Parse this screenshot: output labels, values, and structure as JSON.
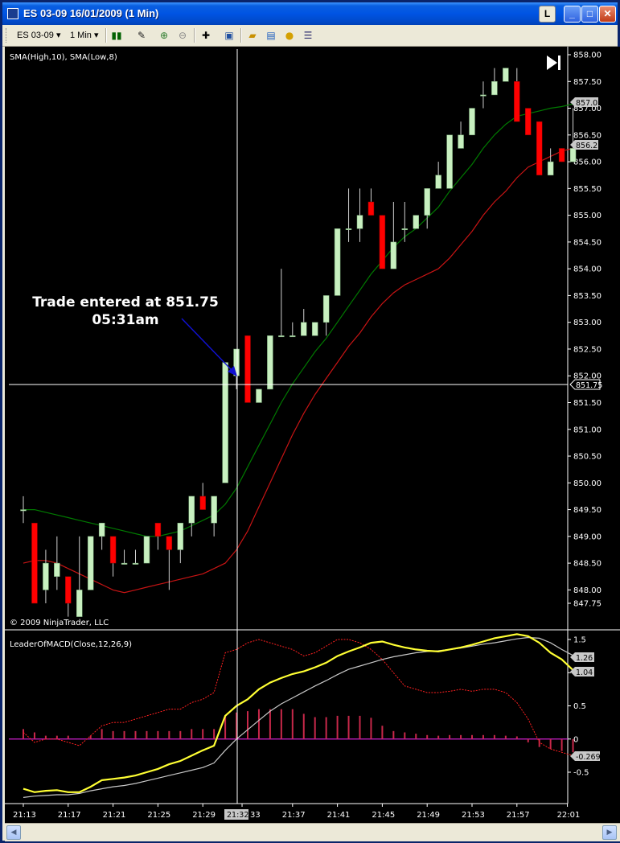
{
  "window": {
    "title": "ES 03-09  16/01/2009 (1 Min)",
    "buttons": {
      "l": "L",
      "minimize": "_",
      "maximize": "□",
      "close": "✕"
    }
  },
  "toolbar": {
    "instrument": "ES 03-09",
    "interval": "1 Min",
    "icons": [
      "candlestick-style-icon",
      "pencil-draw-icon",
      "zoom-in-icon",
      "zoom-out-icon",
      "crosshair-icon",
      "properties-icon",
      "open-folder-icon",
      "chart-template-icon",
      "coin-icon",
      "data-box-icon"
    ]
  },
  "chart": {
    "indicator_label": "SMA(High,10), SMA(Low,8)",
    "copyright": "© 2009 NinjaTrader, LLC",
    "annotation": {
      "line1": "Trade entered at 851.75",
      "line2": "05:31am"
    },
    "crosshair_price": "851.75",
    "crosshair_time": "21:32",
    "sma_high_label": "857.08",
    "sma_low_label": "856.25",
    "colors": {
      "up": "#c8f0c0",
      "down": "#ff0000",
      "sma_high": "#007a00",
      "sma_low": "#c81414",
      "macd": "#ffff33",
      "signal": "#c8c8c8",
      "avg": "#ff2020",
      "hist": "#c8284a",
      "zero": "#d020d0"
    }
  },
  "macd_panel": {
    "label": "LeaderOfMACD(Close,12,26,9)",
    "value_labels": [
      "1.26",
      "1.04",
      "-0.269"
    ]
  },
  "chart_data": [
    {
      "type": "candlestick",
      "title": "",
      "ylim": [
        847.4,
        858.1
      ],
      "y_ticks": [
        "858.00",
        "857.50",
        "857.00",
        "856.50",
        "856.00",
        "855.50",
        "855.00",
        "854.50",
        "854.00",
        "853.50",
        "853.00",
        "852.50",
        "852.00",
        "851.50",
        "851.00",
        "850.50",
        "850.00",
        "849.50",
        "849.00",
        "848.50",
        "848.00",
        "847.75"
      ],
      "x_ticks": [
        "21:13",
        "21:17",
        "21:21",
        "21:25",
        "21:29",
        "21:32",
        "21:37",
        "21:41",
        "21:45",
        "21:49",
        "21:53",
        "21:57",
        "22:01"
      ],
      "candles": [
        {
          "t": 0,
          "o": 849.5,
          "h": 849.75,
          "l": 849.25,
          "c": 849.5
        },
        {
          "t": 1,
          "o": 849.25,
          "h": 849.25,
          "l": 847.75,
          "c": 847.75
        },
        {
          "t": 2,
          "o": 848.0,
          "h": 848.75,
          "l": 847.75,
          "c": 848.5
        },
        {
          "t": 3,
          "o": 848.25,
          "h": 849.0,
          "l": 848.0,
          "c": 848.5
        },
        {
          "t": 4,
          "o": 848.25,
          "h": 848.25,
          "l": 847.5,
          "c": 847.75
        },
        {
          "t": 5,
          "o": 847.5,
          "h": 849.0,
          "l": 847.5,
          "c": 848.0
        },
        {
          "t": 6,
          "o": 848.0,
          "h": 849.0,
          "l": 848.0,
          "c": 849.0
        },
        {
          "t": 7,
          "o": 849.0,
          "h": 849.25,
          "l": 848.75,
          "c": 849.25
        },
        {
          "t": 8,
          "o": 849.0,
          "h": 849.0,
          "l": 848.25,
          "c": 848.5
        },
        {
          "t": 9,
          "o": 848.5,
          "h": 848.75,
          "l": 848.5,
          "c": 848.5
        },
        {
          "t": 10,
          "o": 848.5,
          "h": 848.75,
          "l": 848.5,
          "c": 848.5
        },
        {
          "t": 11,
          "o": 848.5,
          "h": 849.0,
          "l": 848.5,
          "c": 849.0
        },
        {
          "t": 12,
          "o": 849.25,
          "h": 849.25,
          "l": 848.75,
          "c": 849.0
        },
        {
          "t": 13,
          "o": 849.0,
          "h": 849.0,
          "l": 848.0,
          "c": 848.75
        },
        {
          "t": 14,
          "o": 848.75,
          "h": 849.25,
          "l": 848.5,
          "c": 849.25
        },
        {
          "t": 15,
          "o": 849.25,
          "h": 849.75,
          "l": 849.0,
          "c": 849.75
        },
        {
          "t": 16,
          "o": 849.75,
          "h": 850.0,
          "l": 849.5,
          "c": 849.5
        },
        {
          "t": 17,
          "o": 849.25,
          "h": 849.75,
          "l": 849.0,
          "c": 849.75
        },
        {
          "t": 18,
          "o": 850.0,
          "h": 852.25,
          "l": 850.0,
          "c": 852.25
        },
        {
          "t": 19,
          "o": 852.0,
          "h": 852.5,
          "l": 851.75,
          "c": 852.5
        },
        {
          "t": 20,
          "o": 852.75,
          "h": 852.75,
          "l": 851.5,
          "c": 851.5
        },
        {
          "t": 21,
          "o": 851.5,
          "h": 851.75,
          "l": 851.5,
          "c": 851.75
        },
        {
          "t": 22,
          "o": 851.75,
          "h": 852.75,
          "l": 851.75,
          "c": 852.75
        },
        {
          "t": 23,
          "o": 852.75,
          "h": 854.0,
          "l": 852.75,
          "c": 852.75
        },
        {
          "t": 24,
          "o": 852.75,
          "h": 853.0,
          "l": 852.75,
          "c": 852.75
        },
        {
          "t": 25,
          "o": 852.75,
          "h": 853.25,
          "l": 852.75,
          "c": 853.0
        },
        {
          "t": 26,
          "o": 852.75,
          "h": 853.0,
          "l": 852.75,
          "c": 853.0
        },
        {
          "t": 27,
          "o": 853.0,
          "h": 853.5,
          "l": 852.75,
          "c": 853.5
        },
        {
          "t": 28,
          "o": 853.5,
          "h": 854.75,
          "l": 853.5,
          "c": 854.75
        },
        {
          "t": 29,
          "o": 854.75,
          "h": 855.5,
          "l": 854.5,
          "c": 854.75
        },
        {
          "t": 30,
          "o": 854.75,
          "h": 855.5,
          "l": 854.5,
          "c": 855.0
        },
        {
          "t": 31,
          "o": 855.25,
          "h": 855.5,
          "l": 855.0,
          "c": 855.0
        },
        {
          "t": 32,
          "o": 855.0,
          "h": 855.0,
          "l": 854.0,
          "c": 854.0
        },
        {
          "t": 33,
          "o": 854.0,
          "h": 855.25,
          "l": 854.0,
          "c": 854.5
        },
        {
          "t": 34,
          "o": 854.75,
          "h": 855.25,
          "l": 854.5,
          "c": 854.75
        },
        {
          "t": 35,
          "o": 854.75,
          "h": 855.0,
          "l": 854.75,
          "c": 855.0
        },
        {
          "t": 36,
          "o": 855.0,
          "h": 855.5,
          "l": 854.75,
          "c": 855.5
        },
        {
          "t": 37,
          "o": 855.5,
          "h": 856.0,
          "l": 855.5,
          "c": 855.75
        },
        {
          "t": 38,
          "o": 855.5,
          "h": 856.5,
          "l": 855.5,
          "c": 856.5
        },
        {
          "t": 39,
          "o": 856.25,
          "h": 856.75,
          "l": 856.25,
          "c": 856.5
        },
        {
          "t": 40,
          "o": 856.5,
          "h": 857.0,
          "l": 856.5,
          "c": 857.0
        },
        {
          "t": 41,
          "o": 857.25,
          "h": 857.5,
          "l": 857.0,
          "c": 857.25
        },
        {
          "t": 42,
          "o": 857.25,
          "h": 857.75,
          "l": 857.25,
          "c": 857.5
        },
        {
          "t": 43,
          "o": 857.5,
          "h": 857.75,
          "l": 857.5,
          "c": 857.75
        },
        {
          "t": 44,
          "o": 857.5,
          "h": 857.75,
          "l": 856.75,
          "c": 856.75
        },
        {
          "t": 45,
          "o": 857.0,
          "h": 857.0,
          "l": 856.5,
          "c": 856.5
        },
        {
          "t": 46,
          "o": 856.75,
          "h": 856.75,
          "l": 855.75,
          "c": 855.75
        },
        {
          "t": 47,
          "o": 855.75,
          "h": 856.25,
          "l": 855.75,
          "c": 856.0
        },
        {
          "t": 48,
          "o": 856.25,
          "h": 856.25,
          "l": 856.0,
          "c": 856.0
        },
        {
          "t": 49,
          "o": 856.0,
          "h": 857.0,
          "l": 856.0,
          "c": 856.25
        }
      ],
      "series": [
        {
          "name": "SMA(High,10)",
          "values": [
            849.5,
            849.5,
            849.45,
            849.4,
            849.35,
            849.3,
            849.25,
            849.2,
            849.15,
            849.1,
            849.05,
            849.0,
            849.0,
            849.05,
            849.1,
            849.2,
            849.3,
            849.4,
            849.6,
            849.9,
            850.3,
            850.7,
            851.1,
            851.5,
            851.85,
            852.15,
            852.45,
            852.7,
            853.0,
            853.3,
            853.6,
            853.9,
            854.15,
            854.4,
            854.6,
            854.75,
            854.95,
            855.15,
            855.45,
            855.7,
            855.95,
            856.25,
            856.5,
            856.7,
            856.85,
            856.9,
            856.95,
            857.0,
            857.03,
            857.08
          ]
        },
        {
          "name": "SMA(Low,8)",
          "values": [
            848.5,
            848.55,
            848.55,
            848.5,
            848.4,
            848.3,
            848.2,
            848.1,
            848.0,
            847.95,
            848.0,
            848.05,
            848.1,
            848.15,
            848.2,
            848.25,
            848.3,
            848.4,
            848.5,
            848.75,
            849.1,
            849.55,
            850.0,
            850.45,
            850.9,
            851.3,
            851.65,
            851.95,
            852.25,
            852.55,
            852.8,
            853.1,
            853.35,
            853.55,
            853.7,
            853.8,
            853.9,
            854.0,
            854.2,
            854.45,
            854.7,
            855.0,
            855.25,
            855.45,
            855.7,
            855.9,
            856.0,
            856.1,
            856.2,
            856.25
          ]
        }
      ]
    },
    {
      "type": "line",
      "title": "",
      "ylim": [
        -0.95,
        1.7
      ],
      "y_ticks": [
        "1.5",
        "1",
        "0.5",
        "0",
        "-0.5"
      ],
      "series": [
        {
          "name": "MACD",
          "values": [
            -0.75,
            -0.8,
            -0.78,
            -0.77,
            -0.8,
            -0.8,
            -0.72,
            -0.62,
            -0.6,
            -0.58,
            -0.55,
            -0.5,
            -0.45,
            -0.38,
            -0.33,
            -0.25,
            -0.17,
            -0.1,
            0.35,
            0.5,
            0.6,
            0.75,
            0.85,
            0.92,
            0.98,
            1.02,
            1.08,
            1.15,
            1.25,
            1.32,
            1.38,
            1.45,
            1.47,
            1.42,
            1.38,
            1.35,
            1.33,
            1.32,
            1.35,
            1.38,
            1.42,
            1.47,
            1.52,
            1.55,
            1.58,
            1.55,
            1.45,
            1.3,
            1.2,
            1.04
          ]
        },
        {
          "name": "Signal",
          "values": [
            -0.88,
            -0.86,
            -0.85,
            -0.84,
            -0.84,
            -0.82,
            -0.78,
            -0.75,
            -0.72,
            -0.7,
            -0.67,
            -0.63,
            -0.59,
            -0.55,
            -0.51,
            -0.47,
            -0.43,
            -0.36,
            -0.17,
            0.0,
            0.14,
            0.28,
            0.42,
            0.53,
            0.62,
            0.71,
            0.8,
            0.88,
            0.97,
            1.05,
            1.1,
            1.15,
            1.2,
            1.24,
            1.27,
            1.3,
            1.32,
            1.33,
            1.35,
            1.37,
            1.4,
            1.43,
            1.45,
            1.48,
            1.51,
            1.53,
            1.52,
            1.45,
            1.35,
            1.26
          ]
        },
        {
          "name": "Avg",
          "values": [
            0.1,
            -0.05,
            0.0,
            0.0,
            -0.05,
            -0.1,
            0.05,
            0.2,
            0.25,
            0.25,
            0.3,
            0.35,
            0.4,
            0.45,
            0.45,
            0.55,
            0.6,
            0.7,
            1.3,
            1.35,
            1.45,
            1.5,
            1.45,
            1.4,
            1.35,
            1.25,
            1.3,
            1.4,
            1.5,
            1.5,
            1.45,
            1.35,
            1.2,
            1.0,
            0.8,
            0.75,
            0.7,
            0.7,
            0.72,
            0.75,
            0.72,
            0.75,
            0.75,
            0.7,
            0.55,
            0.3,
            -0.05,
            -0.15,
            -0.2,
            -0.25
          ]
        },
        {
          "name": "Histogram",
          "values": [
            0.15,
            0.1,
            0.05,
            0.05,
            0.05,
            0.0,
            0.05,
            0.15,
            0.12,
            0.12,
            0.12,
            0.12,
            0.12,
            0.12,
            0.12,
            0.15,
            0.15,
            0.15,
            0.35,
            0.4,
            0.42,
            0.45,
            0.45,
            0.45,
            0.45,
            0.38,
            0.33,
            0.33,
            0.35,
            0.35,
            0.35,
            0.32,
            0.2,
            0.12,
            0.1,
            0.08,
            0.06,
            0.05,
            0.06,
            0.06,
            0.06,
            0.06,
            0.06,
            0.05,
            0.04,
            -0.05,
            -0.12,
            -0.15,
            -0.18,
            -0.2
          ]
        }
      ]
    }
  ]
}
